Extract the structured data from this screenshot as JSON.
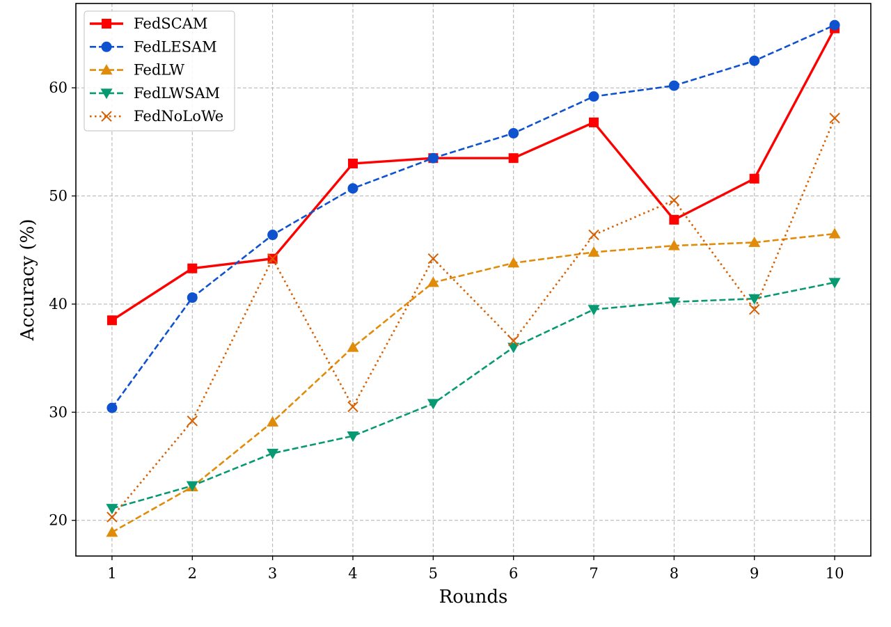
{
  "chart_data": {
    "type": "line",
    "title": "",
    "xlabel": "Rounds",
    "ylabel": "Accuracy (%)",
    "x": [
      1,
      2,
      3,
      4,
      5,
      6,
      7,
      8,
      9,
      10
    ],
    "x_ticks": [
      "1",
      "2",
      "3",
      "4",
      "5",
      "6",
      "7",
      "8",
      "9",
      "10"
    ],
    "y_ticks": [
      "20",
      "30",
      "40",
      "50",
      "60"
    ],
    "xlim": [
      0.55,
      10.45
    ],
    "ylim": [
      16.7,
      67.8
    ],
    "grid": true,
    "legend_position": "top-left",
    "series": [
      {
        "name": "FedSCAM",
        "color": "#ff0000",
        "line_style": "solid",
        "marker": "square",
        "values": [
          38.5,
          43.3,
          44.2,
          53.0,
          53.5,
          53.5,
          56.8,
          47.8,
          51.6,
          65.5
        ]
      },
      {
        "name": "FedLESAM",
        "color": "#0f52d0",
        "line_style": "dashed",
        "marker": "circle",
        "values": [
          30.4,
          40.6,
          46.4,
          50.7,
          53.5,
          55.8,
          59.2,
          60.2,
          62.5,
          65.8
        ]
      },
      {
        "name": "FedLW",
        "color": "#e08c0a",
        "line_style": "dashed",
        "marker": "triangle-up",
        "values": [
          18.9,
          23.1,
          29.1,
          36.0,
          42.0,
          43.8,
          44.8,
          45.4,
          45.7,
          46.5
        ]
      },
      {
        "name": "FedLWSAM",
        "color": "#079a72",
        "line_style": "dashed",
        "marker": "triangle-down",
        "values": [
          21.1,
          23.2,
          26.2,
          27.8,
          30.8,
          36.0,
          39.5,
          40.2,
          40.5,
          42.0
        ]
      },
      {
        "name": "FedNoLoWe",
        "color": "#d65f00",
        "line_style": "dotted",
        "marker": "x",
        "values": [
          20.3,
          29.2,
          44.2,
          30.5,
          44.2,
          36.6,
          46.4,
          49.6,
          39.5,
          57.2
        ]
      }
    ]
  }
}
